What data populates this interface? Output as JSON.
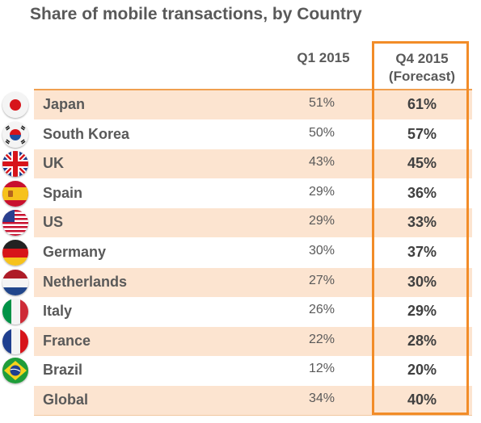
{
  "title": "Share of mobile transactions, by Country",
  "columns": {
    "q1": "Q1 2015",
    "q4_line1": "Q4 2015",
    "q4_line2": "(Forecast)"
  },
  "colors": {
    "accent": "#f28c28",
    "row_shade": "#fce4d0",
    "text": "#595959"
  },
  "chart_data": {
    "type": "table",
    "title": "Share of mobile transactions, by Country",
    "columns": [
      "Q1 2015",
      "Q4 2015 (Forecast)"
    ],
    "rows": [
      {
        "country": "Japan",
        "flag": "japan-flag-icon",
        "q1": "51%",
        "q4": "61%"
      },
      {
        "country": "South Korea",
        "flag": "south-korea-flag-icon",
        "q1": "50%",
        "q4": "57%"
      },
      {
        "country": "UK",
        "flag": "uk-flag-icon",
        "q1": "43%",
        "q4": "45%"
      },
      {
        "country": "Spain",
        "flag": "spain-flag-icon",
        "q1": "29%",
        "q4": "36%"
      },
      {
        "country": "US",
        "flag": "us-flag-icon",
        "q1": "29%",
        "q4": "33%"
      },
      {
        "country": "Germany",
        "flag": "germany-flag-icon",
        "q1": "30%",
        "q4": "37%"
      },
      {
        "country": "Netherlands",
        "flag": "netherlands-flag-icon",
        "q1": "27%",
        "q4": "30%"
      },
      {
        "country": "Italy",
        "flag": "italy-flag-icon",
        "q1": "26%",
        "q4": "29%"
      },
      {
        "country": "France",
        "flag": "france-flag-icon",
        "q1": "22%",
        "q4": "28%"
      },
      {
        "country": "Brazil",
        "flag": "brazil-flag-icon",
        "q1": "12%",
        "q4": "20%"
      },
      {
        "country": "Global",
        "flag": "",
        "q1": "34%",
        "q4": "40%"
      }
    ],
    "highlighted_column": "Q4 2015 (Forecast)"
  }
}
